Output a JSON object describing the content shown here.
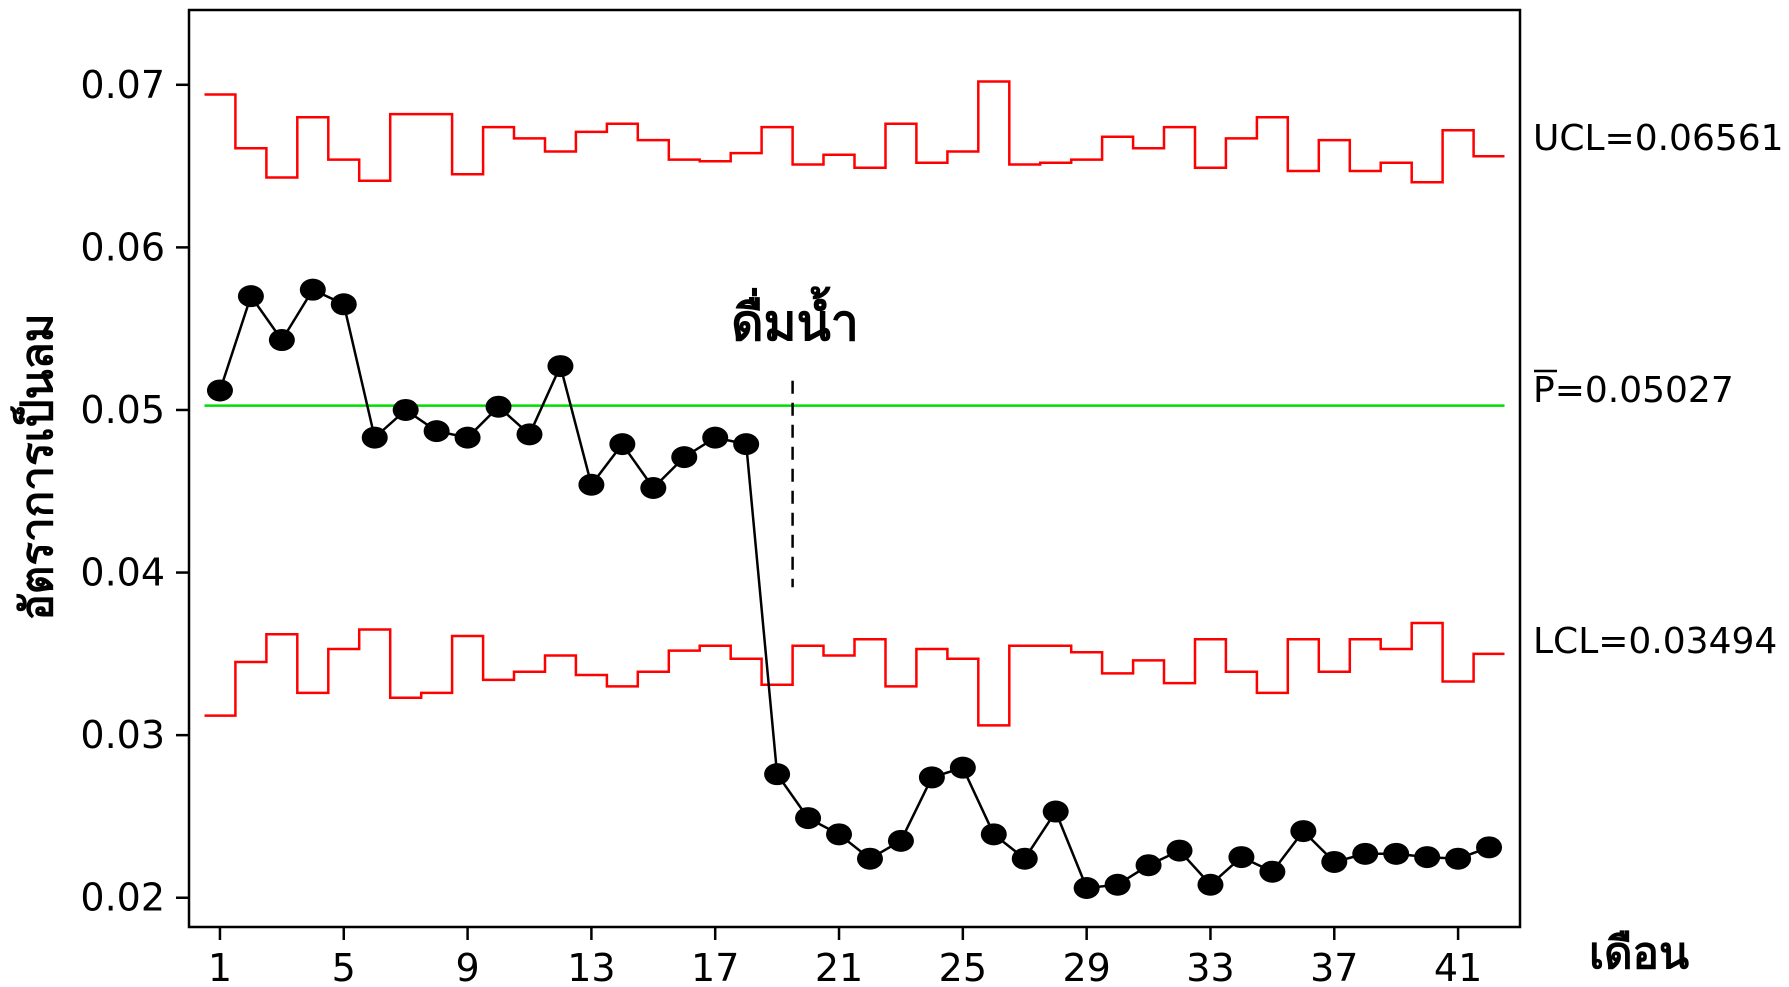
{
  "chart_data": {
    "type": "line",
    "title": "",
    "xlabel": "เดือน",
    "ylabel": "อัตราการเป็นลม",
    "xlim": [
      0,
      43
    ],
    "ylim": [
      0.0182,
      0.0746
    ],
    "x_ticks": [
      1,
      5,
      9,
      13,
      17,
      21,
      25,
      29,
      33,
      37,
      41
    ],
    "y_ticks": [
      0.02,
      0.03,
      0.04,
      0.05,
      0.06,
      0.07
    ],
    "y_tick_labels": [
      "0.02",
      "0.03",
      "0.04",
      "0.05",
      "0.06",
      "0.07"
    ],
    "grid": false,
    "x": [
      1,
      2,
      3,
      4,
      5,
      6,
      7,
      8,
      9,
      10,
      11,
      12,
      13,
      14,
      15,
      16,
      17,
      18,
      19,
      20,
      21,
      22,
      23,
      24,
      25,
      26,
      27,
      28,
      29,
      30,
      31,
      32,
      33,
      34,
      35,
      36,
      37,
      38,
      39,
      40,
      41,
      42
    ],
    "series": [
      {
        "values": [
          0.0512,
          0.057,
          0.0543,
          0.0574,
          0.0565,
          0.0483,
          0.05,
          0.0487,
          0.0483,
          0.0502,
          0.0485,
          0.0527,
          0.0454,
          0.0479,
          0.0452,
          0.0471,
          0.0483,
          0.0479,
          0.0276,
          0.0249,
          0.0239,
          0.0224,
          0.0235,
          0.0274,
          0.028,
          0.0239,
          0.0224,
          0.0253,
          0.0206,
          0.0208,
          0.022,
          0.0229,
          0.0208,
          0.0225,
          0.0216,
          0.0241,
          0.0222,
          0.0227,
          0.0227,
          0.0225,
          0.0224,
          0.0231
        ],
        "color": "#000000"
      }
    ],
    "ucl_values": [
      0.0694,
      0.0661,
      0.0643,
      0.068,
      0.0654,
      0.0641,
      0.0682,
      0.0682,
      0.0645,
      0.0674,
      0.0667,
      0.0659,
      0.0671,
      0.0676,
      0.0666,
      0.0654,
      0.0653,
      0.0658,
      0.0674,
      0.0651,
      0.0657,
      0.0649,
      0.0676,
      0.0652,
      0.0659,
      0.0702,
      0.0651,
      0.0652,
      0.0654,
      0.0668,
      0.0661,
      0.0674,
      0.0649,
      0.0667,
      0.068,
      0.0647,
      0.0666,
      0.0647,
      0.0652,
      0.064,
      0.0672,
      0.0656
    ],
    "lcl_values": [
      0.0312,
      0.0345,
      0.0362,
      0.0326,
      0.0353,
      0.0365,
      0.0323,
      0.0326,
      0.0361,
      0.0334,
      0.0339,
      0.0349,
      0.0337,
      0.033,
      0.0339,
      0.0352,
      0.0355,
      0.0347,
      0.0331,
      0.0355,
      0.0349,
      0.0359,
      0.033,
      0.0353,
      0.0347,
      0.0306,
      0.0355,
      0.0355,
      0.0351,
      0.0338,
      0.0346,
      0.0332,
      0.0359,
      0.0339,
      0.0326,
      0.0359,
      0.0339,
      0.0359,
      0.0353,
      0.0369,
      0.0333,
      0.035
    ],
    "center_line": 0.05027,
    "ucl_label": "UCL=0.06561",
    "center_label": "P=0.05027",
    "lcl_label": "LCL=0.03494",
    "annotation": {
      "text": "ดื่มน้ำ",
      "x": 19.5
    },
    "colors": {
      "limits": "#ff0000",
      "center": "#00dd00",
      "points": "#000000"
    }
  }
}
